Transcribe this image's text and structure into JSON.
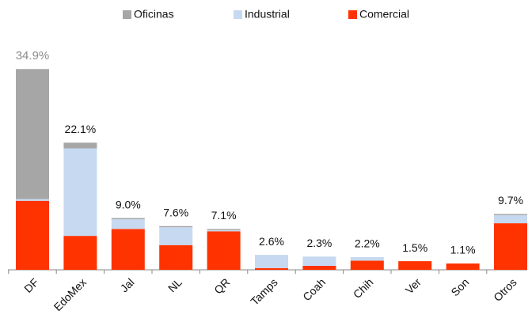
{
  "chart_data": {
    "type": "stacked_bar",
    "categories": [
      "DF",
      "EdoMex",
      "Jal",
      "NL",
      "QR",
      "Tamps",
      "Coah",
      "Chih",
      "Ver",
      "Son",
      "Otros"
    ],
    "series": [
      {
        "name": "Comercial",
        "color": "#ff3300",
        "values": [
          12.0,
          5.9,
          7.1,
          4.3,
          6.7,
          0.3,
          0.7,
          1.6,
          1.5,
          1.1,
          8.1
        ]
      },
      {
        "name": "Industrial",
        "color": "#c6d9f1",
        "values": [
          0.3,
          15.2,
          1.7,
          3.1,
          0.2,
          2.3,
          1.6,
          0.6,
          0,
          0,
          1.4
        ]
      },
      {
        "name": "Oficinas",
        "color": "#a6a6a6",
        "values": [
          22.6,
          1.0,
          0.2,
          0.2,
          0.2,
          0,
          0,
          0,
          0,
          0,
          0.2
        ]
      }
    ],
    "totals": [
      34.9,
      22.1,
      9.0,
      7.6,
      7.1,
      2.6,
      2.3,
      2.2,
      1.5,
      1.1,
      9.7
    ],
    "total_labels": [
      "34.9%",
      "22.1%",
      "9.0%",
      "7.6%",
      "7.1%",
      "2.6%",
      "2.3%",
      "2.2%",
      "1.5%",
      "1.1%",
      "9.7%"
    ],
    "ylim": [
      0,
      37
    ],
    "legend_order": [
      2,
      1,
      0
    ]
  }
}
